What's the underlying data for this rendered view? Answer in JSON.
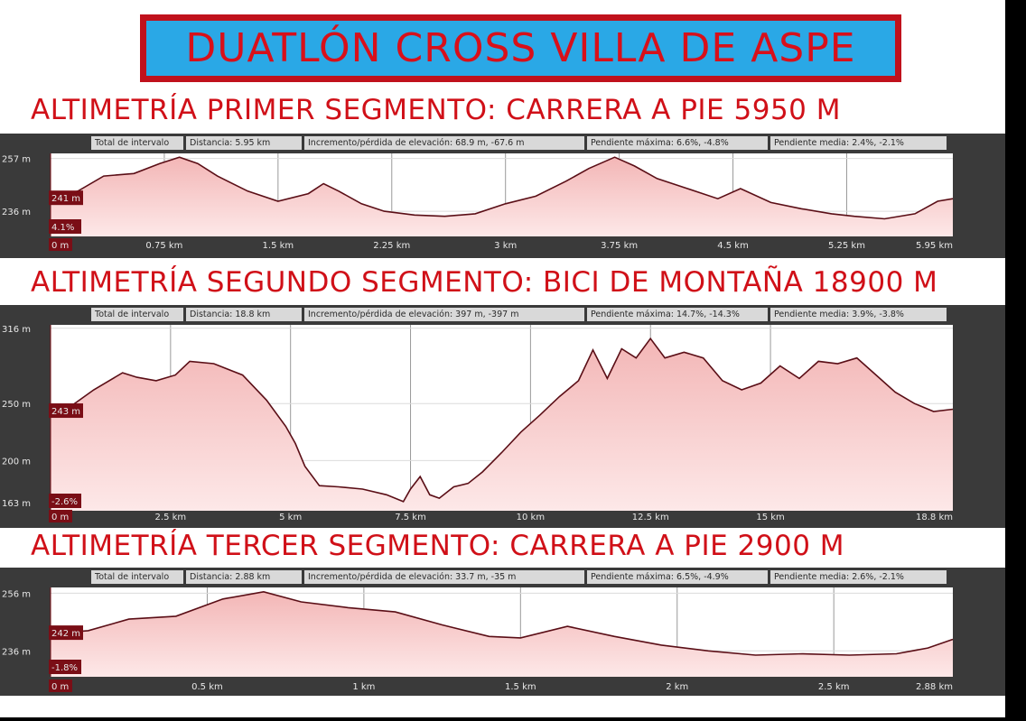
{
  "title": "DUATLÓN CROSS VILLA DE ASPE",
  "colors": {
    "title_text": "#d8101a",
    "title_bg": "#2aa8e6",
    "title_border": "#c0111c",
    "heading": "#d01018",
    "panel_bg": "#3a3a3a",
    "plot_bg": "#ffffff",
    "fill": "#f6c9c9",
    "line": "#5a0e16",
    "grid": "#999999",
    "marker_bg": "#7a0e16",
    "stat_bg": "#d9d9d9"
  },
  "segments": [
    {
      "heading": "ALTIMETRÍA PRIMER SEGMENTO: CARRERA A PIE 5950 M",
      "stats": {
        "interval": "Total de intervalo",
        "distance": "Distancia: 5.95 km",
        "gain_loss": "Incremento/pérdida de elevación: 68.9 m, -67.6 m",
        "max_slope": "Pendiente máxima: 6.6%, -4.8%",
        "avg_slope": "Pendiente media: 2.4%, -2.1%"
      },
      "marker_elev": "241 m",
      "marker_grade": "4.1%",
      "start_label": "0 m"
    },
    {
      "heading": "ALTIMETRÍA SEGUNDO SEGMENTO: BICI DE MONTAÑA 18900 M",
      "stats": {
        "interval": "Total de intervalo",
        "distance": "Distancia: 18.8 km",
        "gain_loss": "Incremento/pérdida de elevación: 397 m, -397 m",
        "max_slope": "Pendiente máxima: 14.7%, -14.3%",
        "avg_slope": "Pendiente media: 3.9%, -3.8%"
      },
      "marker_elev": "243 m",
      "marker_grade": "-2.6%",
      "start_label": "0 m"
    },
    {
      "heading": "ALTIMETRÍA TERCER SEGMENTO: CARRERA A PIE 2900 M",
      "stats": {
        "interval": "Total de intervalo",
        "distance": "Distancia: 2.88 km",
        "gain_loss": "Incremento/pérdida de elevación: 33.7 m, -35 m",
        "max_slope": "Pendiente máxima: 6.5%, -4.9%",
        "avg_slope": "Pendiente media: 2.6%, -2.1%"
      },
      "marker_elev": "242 m",
      "marker_grade": "-1.8%",
      "start_label": "0 m"
    }
  ],
  "chart_data": [
    {
      "type": "area",
      "xlabel": "",
      "ylabel": "",
      "xlim": [
        0,
        5.95
      ],
      "ylim": [
        226,
        259
      ],
      "x_ticks": [
        0.75,
        1.5,
        2.25,
        3,
        3.75,
        4.5,
        5.25,
        5.95
      ],
      "x_tick_labels": [
        "0.75 km",
        "1.5 km",
        "2.25 km",
        "3 km",
        "3.75 km",
        "4.5 km",
        "5.25 km",
        "5.95 km"
      ],
      "y_ticks": [
        257,
        236
      ],
      "y_tick_labels": [
        "257 m",
        "236 m"
      ],
      "grid": true,
      "series": [
        {
          "x": [
            0,
            0.18,
            0.35,
            0.55,
            0.72,
            0.85,
            0.97,
            1.1,
            1.3,
            1.5,
            1.7,
            1.8,
            1.9,
            2.05,
            2.2,
            2.4,
            2.6,
            2.8,
            3.0,
            3.2,
            3.4,
            3.55,
            3.72,
            3.85,
            4.0,
            4.2,
            4.4,
            4.55,
            4.75,
            4.95,
            5.15,
            5.3,
            5.5,
            5.7,
            5.85,
            5.95
          ],
          "y": [
            241,
            244,
            250,
            251,
            255,
            257.5,
            255,
            250,
            244,
            240,
            243,
            247,
            244,
            239,
            236,
            234.5,
            234,
            235,
            239,
            242,
            248,
            253,
            257.5,
            254,
            249,
            245,
            241,
            245,
            239.5,
            237,
            235,
            234,
            233,
            235,
            240,
            241
          ]
        }
      ]
    },
    {
      "type": "area",
      "xlabel": "",
      "ylabel": "",
      "xlim": [
        0,
        18.8
      ],
      "ylim": [
        156,
        319
      ],
      "x_ticks": [
        2.5,
        5,
        7.5,
        10,
        12.5,
        15,
        18.8
      ],
      "x_tick_labels": [
        "2.5 km",
        "5 km",
        "7.5 km",
        "10 km",
        "12.5 km",
        "15 km",
        "18.8 km"
      ],
      "y_ticks": [
        316,
        250,
        200,
        163
      ],
      "y_tick_labels": [
        "316 m",
        "250 m",
        "200 m",
        "163 m"
      ],
      "grid": true,
      "series": [
        {
          "x": [
            0,
            0.4,
            0.9,
            1.5,
            1.8,
            2.2,
            2.6,
            2.9,
            3.4,
            4.0,
            4.5,
            4.9,
            5.1,
            5.3,
            5.6,
            6.0,
            6.5,
            7.0,
            7.35,
            7.5,
            7.7,
            7.9,
            8.1,
            8.4,
            8.7,
            9.0,
            9.4,
            9.8,
            10.2,
            10.6,
            11.0,
            11.3,
            11.6,
            11.9,
            12.2,
            12.5,
            12.8,
            13.2,
            13.6,
            14.0,
            14.4,
            14.8,
            15.2,
            15.6,
            16.0,
            16.4,
            16.8,
            17.2,
            17.6,
            18.0,
            18.4,
            18.8
          ],
          "y": [
            243,
            247,
            262,
            277,
            273,
            270,
            275,
            287,
            285,
            275,
            253,
            230,
            215,
            195,
            178,
            177,
            175,
            170,
            164,
            175,
            186,
            170,
            167,
            177,
            180,
            190,
            207,
            225,
            240,
            256,
            270,
            297,
            272,
            298,
            290,
            307,
            290,
            295,
            290,
            270,
            262,
            268,
            283,
            272,
            287,
            285,
            290,
            275,
            260,
            250,
            243,
            245
          ]
        }
      ]
    },
    {
      "type": "area",
      "xlabel": "",
      "ylabel": "",
      "xlim": [
        0,
        2.88
      ],
      "ylim": [
        227,
        258
      ],
      "x_ticks": [
        0.5,
        1,
        1.5,
        2,
        2.5,
        2.88
      ],
      "x_tick_labels": [
        "0.5 km",
        "1 km",
        "1.5 km",
        "2 km",
        "2.5 km",
        "2.88 km"
      ],
      "y_ticks": [
        256,
        236
      ],
      "y_tick_labels": [
        "256 m",
        "236 m"
      ],
      "grid": true,
      "series": [
        {
          "x": [
            0,
            0.12,
            0.25,
            0.4,
            0.55,
            0.68,
            0.8,
            0.95,
            1.1,
            1.25,
            1.4,
            1.5,
            1.65,
            1.8,
            1.95,
            2.1,
            2.25,
            2.4,
            2.55,
            2.7,
            2.8,
            2.88
          ],
          "y": [
            242,
            243,
            247,
            248,
            254,
            256.5,
            253,
            251,
            249.5,
            245,
            241,
            240.5,
            244.5,
            241,
            238,
            236,
            234.5,
            235,
            234.5,
            235,
            237,
            240
          ]
        }
      ]
    }
  ]
}
